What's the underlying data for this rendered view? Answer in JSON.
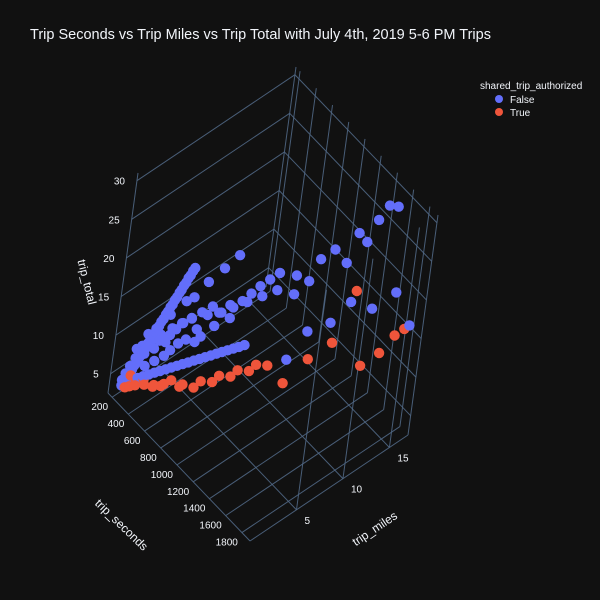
{
  "chart_data": {
    "type": "scatter3d",
    "title": "Trip Seconds vs Trip Miles vs Trip Total with July 4th, 2019 5-6 PM Trips",
    "legend": {
      "title": "shared_trip_authorized",
      "placement": "top-right",
      "entries": [
        {
          "name": "False",
          "color": "#636efa"
        },
        {
          "name": "True",
          "color": "#ef553b"
        }
      ]
    },
    "axes": {
      "x": {
        "label": "trip_seconds",
        "range": [
          150,
          1900
        ],
        "ticks": [
          200,
          400,
          600,
          800,
          1000,
          1200,
          1400,
          1600,
          1800
        ]
      },
      "y": {
        "label": "trip_miles",
        "range": [
          0,
          17
        ],
        "ticks": [
          5,
          10,
          15
        ]
      },
      "z": {
        "label": "trip_total",
        "range": [
          2.5,
          31
        ],
        "ticks": [
          5,
          10,
          15,
          20,
          25,
          30
        ]
      }
    },
    "grid": true,
    "series": [
      {
        "name": "False",
        "color": "#636efa",
        "points": [
          [
            220,
            1.0,
            5
          ],
          [
            240,
            1.2,
            6
          ],
          [
            260,
            1.5,
            7
          ],
          [
            300,
            1.4,
            7.5
          ],
          [
            320,
            1.8,
            8
          ],
          [
            340,
            2.0,
            9
          ],
          [
            360,
            1.6,
            7
          ],
          [
            380,
            2.2,
            9
          ],
          [
            400,
            2.5,
            10
          ],
          [
            420,
            2.0,
            8
          ],
          [
            440,
            2.8,
            10
          ],
          [
            460,
            3.0,
            11
          ],
          [
            480,
            2.4,
            9
          ],
          [
            500,
            3.2,
            12
          ],
          [
            520,
            2.6,
            10
          ],
          [
            540,
            3.5,
            13
          ],
          [
            560,
            3.0,
            11
          ],
          [
            600,
            3.8,
            14
          ],
          [
            620,
            3.2,
            12
          ],
          [
            650,
            4.0,
            13
          ],
          [
            680,
            3.6,
            12
          ],
          [
            700,
            4.5,
            15
          ],
          [
            720,
            3.8,
            13
          ],
          [
            760,
            4.8,
            14
          ],
          [
            800,
            5.0,
            16
          ],
          [
            840,
            5.5,
            17
          ],
          [
            880,
            5.2,
            16
          ],
          [
            920,
            6.0,
            18
          ],
          [
            960,
            6.5,
            19
          ],
          [
            1000,
            7.0,
            20
          ],
          [
            1050,
            7.5,
            21
          ],
          [
            1100,
            8.0,
            22
          ],
          [
            300,
            2.2,
            10
          ],
          [
            350,
            2.5,
            11
          ],
          [
            420,
            3.2,
            13
          ],
          [
            500,
            4.0,
            15
          ],
          [
            560,
            4.2,
            16
          ],
          [
            620,
            5.0,
            18
          ],
          [
            700,
            5.8,
            20
          ],
          [
            780,
            6.5,
            22
          ],
          [
            250,
            1.6,
            8
          ],
          [
            280,
            1.9,
            8.5
          ],
          [
            330,
            2.3,
            9.5
          ],
          [
            390,
            2.7,
            10.5
          ],
          [
            450,
            3.3,
            11.5
          ],
          [
            510,
            3.7,
            12.5
          ],
          [
            570,
            4.1,
            13.5
          ],
          [
            630,
            4.6,
            14.5
          ],
          [
            690,
            5.1,
            15.5
          ],
          [
            740,
            5.4,
            15
          ],
          [
            820,
            6.1,
            16
          ],
          [
            900,
            6.8,
            17
          ],
          [
            980,
            7.6,
            18
          ],
          [
            1060,
            8.4,
            19
          ],
          [
            1150,
            9.5,
            21
          ],
          [
            1250,
            11.0,
            23
          ],
          [
            1400,
            13.5,
            26
          ],
          [
            1500,
            14.5,
            28
          ],
          [
            1550,
            15.0,
            30
          ],
          [
            1600,
            15.5,
            30
          ],
          [
            1300,
            12.0,
            24
          ],
          [
            1350,
            13.0,
            22
          ],
          [
            1450,
            14.0,
            25
          ],
          [
            1200,
            10.5,
            20
          ],
          [
            1120,
            9.8,
            18
          ],
          [
            1700,
            15.5,
            20
          ],
          [
            1600,
            14.0,
            18
          ],
          [
            1500,
            12.5,
            19
          ],
          [
            1400,
            11.5,
            16
          ],
          [
            1300,
            10.0,
            15
          ],
          [
            1800,
            16.5,
            16
          ],
          [
            1250,
            8.5,
            12
          ],
          [
            230,
            1.1,
            4
          ],
          [
            270,
            1.3,
            4.5
          ],
          [
            310,
            1.5,
            5
          ],
          [
            350,
            1.7,
            5.5
          ],
          [
            390,
            1.9,
            6
          ],
          [
            430,
            2.1,
            6.5
          ],
          [
            470,
            2.3,
            7
          ],
          [
            510,
            2.5,
            7.5
          ],
          [
            550,
            2.7,
            8
          ],
          [
            590,
            2.9,
            8.5
          ],
          [
            630,
            3.1,
            9
          ],
          [
            670,
            3.3,
            9.5
          ],
          [
            710,
            3.5,
            10
          ],
          [
            750,
            3.7,
            10.5
          ],
          [
            790,
            3.9,
            11
          ],
          [
            830,
            4.1,
            11.5
          ],
          [
            870,
            4.3,
            12
          ],
          [
            910,
            4.5,
            12.5
          ],
          [
            950,
            4.7,
            13
          ],
          [
            990,
            4.9,
            13.5
          ],
          [
            1030,
            5.1,
            14
          ],
          [
            1070,
            5.3,
            14.5
          ],
          [
            200,
            0.9,
            4
          ],
          [
            210,
            0.8,
            3.5
          ],
          [
            215,
            1.0,
            3.8
          ],
          [
            225,
            0.9,
            4.2
          ],
          [
            235,
            1.1,
            4.6
          ],
          [
            245,
            1.2,
            5.2
          ],
          [
            255,
            1.3,
            5.6
          ],
          [
            265,
            1.4,
            6.2
          ],
          [
            275,
            1.5,
            6.6
          ],
          [
            285,
            1.6,
            7.2
          ],
          [
            295,
            1.7,
            7.6
          ],
          [
            305,
            1.8,
            8.2
          ],
          [
            315,
            1.9,
            8.6
          ],
          [
            325,
            2.0,
            9.2
          ],
          [
            335,
            2.1,
            9.6
          ],
          [
            345,
            2.2,
            10.2
          ],
          [
            355,
            2.3,
            10.6
          ],
          [
            365,
            2.4,
            11.2
          ],
          [
            375,
            2.5,
            11.6
          ],
          [
            385,
            2.6,
            12.2
          ],
          [
            395,
            2.7,
            12.6
          ],
          [
            405,
            2.8,
            13.2
          ],
          [
            415,
            2.9,
            13.6
          ],
          [
            425,
            3.0,
            14.2
          ],
          [
            435,
            3.1,
            14.6
          ],
          [
            445,
            3.2,
            15.2
          ],
          [
            455,
            3.3,
            15.6
          ],
          [
            465,
            3.4,
            16.2
          ],
          [
            475,
            3.5,
            16.6
          ],
          [
            485,
            3.6,
            17.2
          ],
          [
            495,
            3.7,
            17.6
          ],
          [
            505,
            3.8,
            18.2
          ],
          [
            515,
            3.9,
            18.6
          ],
          [
            525,
            4.0,
            19.2
          ],
          [
            535,
            4.1,
            19.6
          ]
        ]
      },
      {
        "name": "True",
        "color": "#ef553b",
        "points": [
          [
            230,
            1.0,
            4
          ],
          [
            260,
            1.2,
            5
          ],
          [
            300,
            1.5,
            4.5
          ],
          [
            350,
            1.8,
            5
          ],
          [
            420,
            2.2,
            4.5
          ],
          [
            480,
            2.5,
            5
          ],
          [
            540,
            3.0,
            6
          ],
          [
            600,
            3.4,
            5.5
          ],
          [
            700,
            4.0,
            6
          ],
          [
            800,
            5.0,
            7
          ],
          [
            900,
            6.0,
            8
          ],
          [
            1000,
            7.0,
            9
          ],
          [
            1100,
            8.0,
            10
          ],
          [
            1200,
            9.0,
            8
          ],
          [
            1300,
            10.5,
            11
          ],
          [
            1400,
            12.0,
            13
          ],
          [
            1500,
            13.0,
            20
          ],
          [
            1700,
            16.0,
            14
          ],
          [
            1650,
            15.0,
            12
          ],
          [
            1750,
            16.5,
            15
          ],
          [
            1600,
            13.5,
            11
          ],
          [
            240,
            0.9,
            3.5
          ],
          [
            270,
            1.1,
            3.8
          ],
          [
            310,
            1.3,
            4.2
          ],
          [
            380,
            1.6,
            4.8
          ],
          [
            450,
            2.0,
            5.2
          ],
          [
            520,
            2.4,
            5.8
          ],
          [
            650,
            3.2,
            6.5
          ],
          [
            750,
            4.2,
            7.2
          ],
          [
            850,
            5.2,
            8.2
          ],
          [
            950,
            6.2,
            9.2
          ],
          [
            1050,
            7.2,
            10.2
          ]
        ]
      }
    ]
  }
}
